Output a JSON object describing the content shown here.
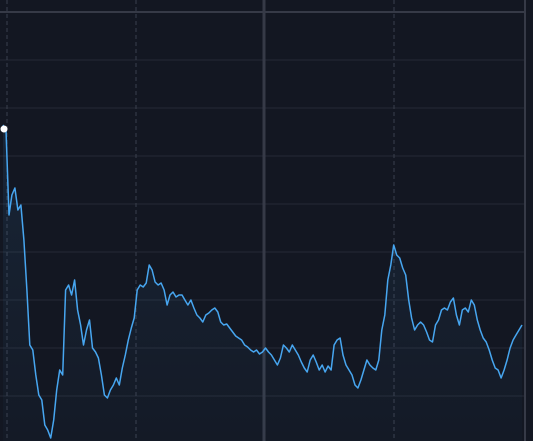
{
  "chart_data": {
    "type": "line",
    "series": [
      {
        "color": "#47a6f0",
        "values": [
          319,
          314,
          229,
          249,
          256,
          234,
          239,
          204,
          154,
          99,
          94,
          69,
          49,
          44,
          19,
          14,
          6,
          24,
          54,
          74,
          69,
          154,
          159,
          149,
          164,
          134,
          119,
          99,
          114,
          124,
          96,
          92,
          86,
          69,
          49,
          46,
          54,
          59,
          66,
          59,
          76,
          89,
          104,
          116,
          126,
          154,
          159,
          157,
          161,
          179,
          174,
          162,
          159,
          161,
          154,
          139,
          149,
          152,
          147,
          149,
          149,
          144,
          139,
          144,
          136,
          129,
          126,
          122,
          129,
          131,
          134,
          136,
          132,
          122,
          119,
          120,
          116,
          112,
          108,
          106,
          104,
          99,
          97,
          94,
          92,
          94,
          90,
          92,
          96,
          92,
          89,
          84,
          79,
          86,
          99,
          96,
          92,
          99,
          94,
          89,
          82,
          76,
          72,
          84,
          89,
          82,
          74,
          79,
          72,
          78,
          74,
          99,
          104,
          106,
          89,
          79,
          74,
          69,
          59,
          56,
          64,
          74,
          84,
          79,
          76,
          74,
          84,
          114,
          129,
          164,
          179,
          199,
          189,
          186,
          176,
          169,
          144,
          126,
          114,
          119,
          122,
          119,
          112,
          104,
          102,
          119,
          124,
          134,
          136,
          134,
          142,
          146,
          129,
          119,
          134,
          136,
          132,
          144,
          139,
          124,
          114,
          106,
          102,
          94,
          84,
          76,
          74,
          66,
          74,
          84,
          96,
          104,
          109,
          114,
          119
        ]
      }
    ],
    "ylim": [
      0,
      432
    ],
    "yticks": [
      48,
      96,
      144,
      192,
      240,
      288,
      336,
      384,
      432
    ],
    "grid": true
  }
}
